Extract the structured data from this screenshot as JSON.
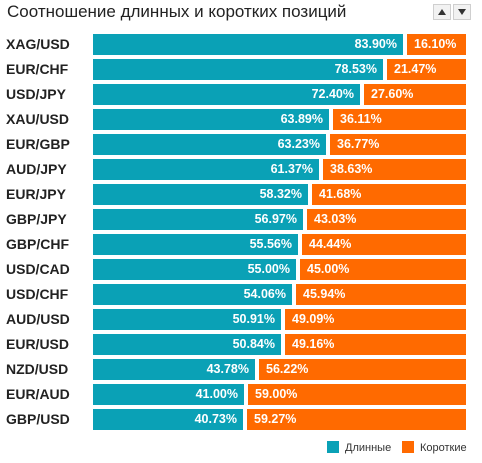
{
  "header": {
    "title": "Соотношение длинных и коротких позиций"
  },
  "controls": {
    "sort_up_icon": "triangle-up-icon",
    "sort_down_icon": "triangle-down-icon"
  },
  "colors": {
    "long": "#0aa1b6",
    "short": "#ff6a00"
  },
  "chart_data": {
    "type": "bar",
    "orientation": "horizontal",
    "stacked": true,
    "title": "Соотношение длинных и коротких позиций",
    "categories": [
      "XAG/USD",
      "EUR/CHF",
      "USD/JPY",
      "XAU/USD",
      "EUR/GBP",
      "AUD/JPY",
      "EUR/JPY",
      "GBP/JPY",
      "GBP/CHF",
      "USD/CAD",
      "USD/CHF",
      "AUD/USD",
      "EUR/USD",
      "NZD/USD",
      "EUR/AUD",
      "GBP/USD"
    ],
    "series": [
      {
        "name": "Длинные",
        "values": [
          83.9,
          78.53,
          72.4,
          63.89,
          63.23,
          61.37,
          58.32,
          56.97,
          55.56,
          55.0,
          54.06,
          50.91,
          50.84,
          43.78,
          41.0,
          40.73
        ],
        "labels": [
          "83.90%",
          "78.53%",
          "72.40%",
          "63.89%",
          "63.23%",
          "61.37%",
          "58.32%",
          "56.97%",
          "55.56%",
          "55.00%",
          "54.06%",
          "50.91%",
          "50.84%",
          "43.78%",
          "41.00%",
          "40.73%"
        ]
      },
      {
        "name": "Короткие",
        "values": [
          16.1,
          21.47,
          27.6,
          36.11,
          36.77,
          38.63,
          41.68,
          43.03,
          44.44,
          45.0,
          45.94,
          49.09,
          49.16,
          56.22,
          59.0,
          59.27
        ],
        "labels": [
          "16.10%",
          "21.47%",
          "27.60%",
          "36.11%",
          "36.77%",
          "38.63%",
          "41.68%",
          "43.03%",
          "44.44%",
          "45.00%",
          "45.94%",
          "49.09%",
          "49.16%",
          "56.22%",
          "59.00%",
          "59.27%"
        ]
      }
    ],
    "xlim": [
      0,
      100
    ],
    "legend_position": "bottom-right",
    "grid": false
  }
}
